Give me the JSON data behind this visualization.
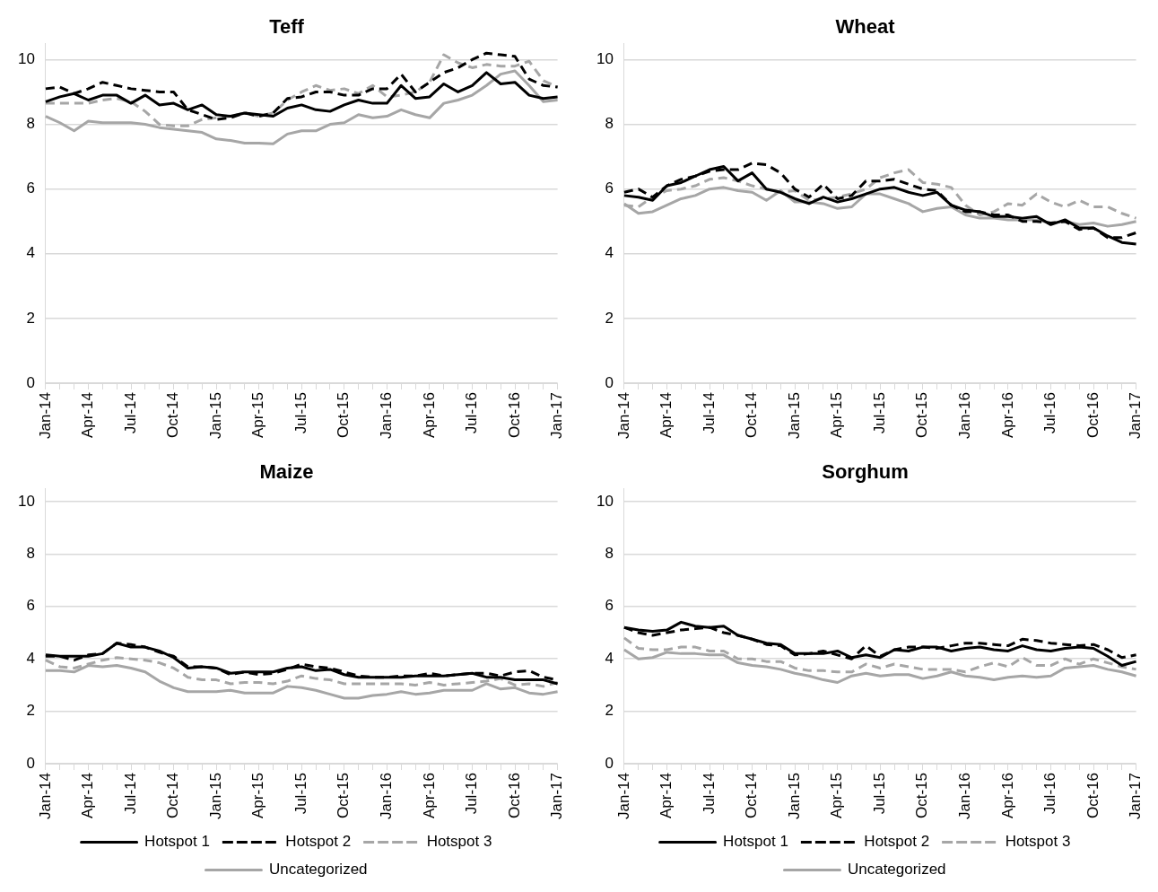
{
  "chart_data": [
    {
      "type": "line",
      "title": "Teff",
      "categories": [
        "Jan-14",
        null,
        null,
        "Apr-14",
        null,
        null,
        "Jul-14",
        null,
        null,
        "Oct-14",
        null,
        null,
        "Jan-15",
        null,
        null,
        "Apr-15",
        null,
        null,
        "Jul-15",
        null,
        null,
        "Oct-15",
        null,
        null,
        "Jan-16",
        null,
        null,
        "Apr-16",
        null,
        null,
        "Jul-16",
        null,
        null,
        "Oct-16",
        null,
        null,
        "Jan-17"
      ],
      "ylim": [
        0,
        10.5
      ],
      "yticks": [
        0,
        2,
        4,
        6,
        8,
        10
      ],
      "grid": "y",
      "legend": false,
      "marker": "none",
      "series": [
        {
          "color": "#000000",
          "line_style": "solid",
          "values": [
            8.7,
            8.85,
            8.95,
            8.75,
            8.9,
            8.9,
            8.65,
            8.9,
            8.6,
            8.65,
            8.45,
            8.6,
            8.3,
            8.25,
            8.35,
            8.3,
            8.25,
            8.5,
            8.6,
            8.45,
            8.4,
            8.6,
            8.75,
            8.65,
            8.65,
            9.2,
            8.8,
            8.85,
            9.25,
            9.0,
            9.2,
            9.6,
            9.25,
            9.3,
            8.9,
            8.8,
            8.85
          ]
        },
        {
          "color": "#000000",
          "line_style": "dashed",
          "values": [
            9.1,
            9.15,
            8.95,
            9.1,
            9.3,
            9.2,
            9.1,
            9.05,
            9.0,
            9.0,
            8.45,
            8.3,
            8.15,
            8.2,
            8.35,
            8.25,
            8.35,
            8.8,
            8.85,
            9.0,
            9.0,
            8.9,
            8.9,
            9.1,
            9.1,
            9.55,
            9.0,
            9.3,
            9.6,
            9.75,
            10.0,
            10.2,
            10.15,
            10.1,
            9.4,
            9.2,
            9.15
          ]
        },
        {
          "color": "#a6a6a6",
          "line_style": "dashed",
          "values": [
            8.65,
            8.65,
            8.65,
            8.65,
            8.75,
            8.8,
            8.7,
            8.4,
            8.0,
            7.95,
            7.95,
            8.15,
            8.2,
            8.25,
            8.35,
            8.25,
            8.35,
            8.75,
            9.0,
            9.2,
            9.05,
            9.1,
            8.95,
            9.2,
            8.85,
            8.9,
            9.0,
            9.3,
            10.15,
            9.9,
            9.75,
            9.85,
            9.8,
            9.8,
            9.95,
            9.35,
            9.15
          ]
        },
        {
          "color": "#a6a6a6",
          "line_style": "solid",
          "values": [
            8.25,
            8.05,
            7.8,
            8.1,
            8.05,
            8.05,
            8.05,
            8.0,
            7.9,
            7.85,
            7.8,
            7.75,
            7.55,
            7.5,
            7.42,
            7.42,
            7.4,
            7.7,
            7.8,
            7.8,
            8.0,
            8.05,
            8.3,
            8.2,
            8.25,
            8.45,
            8.3,
            8.2,
            8.65,
            8.75,
            8.9,
            9.2,
            9.55,
            9.65,
            9.2,
            8.7,
            8.75
          ]
        }
      ]
    },
    {
      "type": "line",
      "title": "Wheat",
      "categories": [
        "Jan-14",
        null,
        null,
        "Apr-14",
        null,
        null,
        "Jul-14",
        null,
        null,
        "Oct-14",
        null,
        null,
        "Jan-15",
        null,
        null,
        "Apr-15",
        null,
        null,
        "Jul-15",
        null,
        null,
        "Oct-15",
        null,
        null,
        "Jan-16",
        null,
        null,
        "Apr-16",
        null,
        null,
        "Jul-16",
        null,
        null,
        "Oct-16",
        null,
        null,
        "Jan-17"
      ],
      "ylim": [
        0,
        10.5
      ],
      "yticks": [
        0,
        2,
        4,
        6,
        8,
        10
      ],
      "grid": "y",
      "legend": false,
      "marker": "none",
      "series": [
        {
          "color": "#000000",
          "line_style": "solid",
          "values": [
            5.8,
            5.75,
            5.65,
            6.1,
            6.2,
            6.4,
            6.6,
            6.7,
            6.25,
            6.5,
            6.0,
            5.9,
            5.7,
            5.55,
            5.75,
            5.6,
            5.7,
            5.85,
            6.0,
            6.05,
            5.9,
            5.8,
            5.9,
            5.5,
            5.35,
            5.3,
            5.15,
            5.15,
            5.1,
            5.15,
            4.9,
            5.05,
            4.8,
            4.8,
            4.55,
            4.35,
            4.3
          ]
        },
        {
          "color": "#000000",
          "line_style": "dashed",
          "values": [
            5.9,
            6.0,
            5.75,
            6.1,
            6.3,
            6.4,
            6.55,
            6.6,
            6.6,
            6.8,
            6.75,
            6.5,
            6.0,
            5.75,
            6.15,
            5.7,
            5.8,
            6.25,
            6.25,
            6.3,
            6.15,
            6.0,
            5.95,
            5.5,
            5.3,
            5.3,
            5.2,
            5.2,
            5.0,
            5.0,
            4.95,
            5.0,
            4.75,
            4.8,
            4.5,
            4.5,
            4.65
          ]
        },
        {
          "color": "#a6a6a6",
          "line_style": "dashed",
          "values": [
            5.5,
            5.45,
            5.75,
            5.95,
            6.0,
            6.1,
            6.3,
            6.35,
            6.25,
            6.1,
            6.0,
            5.9,
            5.95,
            5.65,
            5.7,
            5.75,
            5.85,
            6.0,
            6.35,
            6.5,
            6.6,
            6.2,
            6.15,
            6.05,
            5.5,
            5.2,
            5.3,
            5.55,
            5.5,
            5.85,
            5.6,
            5.45,
            5.65,
            5.45,
            5.45,
            5.25,
            5.1
          ]
        },
        {
          "color": "#a6a6a6",
          "line_style": "solid",
          "values": [
            5.55,
            5.25,
            5.3,
            5.5,
            5.7,
            5.8,
            6.0,
            6.05,
            5.95,
            5.9,
            5.65,
            5.95,
            5.6,
            5.6,
            5.55,
            5.4,
            5.45,
            5.85,
            5.85,
            5.7,
            5.55,
            5.3,
            5.4,
            5.45,
            5.2,
            5.1,
            5.1,
            5.05,
            5.05,
            5.05,
            4.95,
            5.0,
            4.9,
            4.95,
            4.85,
            4.9,
            5.0
          ]
        }
      ]
    },
    {
      "type": "line",
      "title": "Maize",
      "categories": [
        "Jan-14",
        null,
        null,
        "Apr-14",
        null,
        null,
        "Jul-14",
        null,
        null,
        "Oct-14",
        null,
        null,
        "Jan-15",
        null,
        null,
        "Apr-15",
        null,
        null,
        "Jul-15",
        null,
        null,
        "Oct-15",
        null,
        null,
        "Jan-16",
        null,
        null,
        "Apr-16",
        null,
        null,
        "Jul-16",
        null,
        null,
        "Oct-16",
        null,
        null,
        "Jan-17"
      ],
      "ylim": [
        0,
        10.5
      ],
      "yticks": [
        0,
        2,
        4,
        6,
        8,
        10
      ],
      "grid": "y",
      "legend": "bottom",
      "marker": "none",
      "series": [
        {
          "name": "Hotspot 1",
          "color": "#000000",
          "line_style": "solid",
          "values": [
            4.15,
            4.1,
            4.1,
            4.1,
            4.2,
            4.6,
            4.45,
            4.45,
            4.3,
            4.05,
            3.65,
            3.7,
            3.65,
            3.45,
            3.5,
            3.5,
            3.5,
            3.65,
            3.7,
            3.55,
            3.6,
            3.4,
            3.3,
            3.3,
            3.3,
            3.3,
            3.35,
            3.35,
            3.35,
            3.4,
            3.45,
            3.3,
            3.3,
            3.2,
            3.2,
            3.2,
            3.05
          ]
        },
        {
          "name": "Hotspot 2",
          "color": "#000000",
          "line_style": "dashed",
          "values": [
            4.1,
            4.1,
            3.95,
            4.15,
            4.2,
            4.6,
            4.55,
            4.45,
            4.25,
            4.1,
            3.7,
            3.7,
            3.65,
            3.4,
            3.5,
            3.4,
            3.45,
            3.6,
            3.8,
            3.7,
            3.65,
            3.5,
            3.35,
            3.3,
            3.3,
            3.35,
            3.35,
            3.45,
            3.35,
            3.4,
            3.45,
            3.45,
            3.35,
            3.5,
            3.55,
            3.3,
            3.2
          ]
        },
        {
          "name": "Hotspot 3",
          "color": "#a6a6a6",
          "line_style": "dashed",
          "values": [
            3.95,
            3.7,
            3.65,
            3.8,
            3.95,
            4.05,
            4.0,
            3.95,
            3.85,
            3.65,
            3.3,
            3.2,
            3.2,
            3.05,
            3.1,
            3.1,
            3.05,
            3.15,
            3.35,
            3.25,
            3.2,
            3.05,
            3.05,
            3.05,
            3.05,
            3.05,
            3.0,
            3.1,
            3.0,
            3.05,
            3.1,
            3.15,
            3.25,
            3.0,
            3.05,
            2.95,
            3.1
          ]
        },
        {
          "name": "Uncategorized",
          "color": "#a6a6a6",
          "line_style": "solid",
          "values": [
            3.55,
            3.55,
            3.5,
            3.75,
            3.7,
            3.75,
            3.65,
            3.5,
            3.15,
            2.9,
            2.75,
            2.75,
            2.75,
            2.8,
            2.7,
            2.7,
            2.7,
            2.95,
            2.9,
            2.8,
            2.65,
            2.5,
            2.5,
            2.6,
            2.65,
            2.75,
            2.65,
            2.7,
            2.8,
            2.8,
            2.8,
            3.05,
            2.85,
            2.9,
            2.7,
            2.65,
            2.75
          ]
        }
      ]
    },
    {
      "type": "line",
      "title": "Sorghum",
      "categories": [
        "Jan-14",
        null,
        null,
        "Apr-14",
        null,
        null,
        "Jul-14",
        null,
        null,
        "Oct-14",
        null,
        null,
        "Jan-15",
        null,
        null,
        "Apr-15",
        null,
        null,
        "Jul-15",
        null,
        null,
        "Oct-15",
        null,
        null,
        "Jan-16",
        null,
        null,
        "Apr-16",
        null,
        null,
        "Jul-16",
        null,
        null,
        "Oct-16",
        null,
        null,
        "Jan-17"
      ],
      "ylim": [
        0,
        10.5
      ],
      "yticks": [
        0,
        2,
        4,
        6,
        8,
        10
      ],
      "grid": "y",
      "legend": "bottom",
      "marker": "none",
      "series": [
        {
          "name": "Hotspot 1",
          "color": "#000000",
          "line_style": "solid",
          "values": [
            5.2,
            5.1,
            5.05,
            5.1,
            5.4,
            5.25,
            5.2,
            5.25,
            4.9,
            4.75,
            4.6,
            4.55,
            4.2,
            4.2,
            4.2,
            4.3,
            4.05,
            4.15,
            4.05,
            4.35,
            4.3,
            4.45,
            4.45,
            4.3,
            4.4,
            4.45,
            4.35,
            4.3,
            4.5,
            4.35,
            4.3,
            4.4,
            4.45,
            4.4,
            4.1,
            3.75,
            3.9
          ]
        },
        {
          "name": "Hotspot 2",
          "color": "#000000",
          "line_style": "dashed",
          "values": [
            5.2,
            5.0,
            4.9,
            5.0,
            5.1,
            5.15,
            5.2,
            5.0,
            4.9,
            4.75,
            4.55,
            4.5,
            4.15,
            4.2,
            4.3,
            4.15,
            4.0,
            4.5,
            4.1,
            4.35,
            4.45,
            4.45,
            4.4,
            4.5,
            4.6,
            4.6,
            4.55,
            4.5,
            4.75,
            4.7,
            4.6,
            4.55,
            4.5,
            4.55,
            4.35,
            4.05,
            4.15
          ]
        },
        {
          "name": "Hotspot 3",
          "color": "#a6a6a6",
          "line_style": "dashed",
          "values": [
            4.8,
            4.4,
            4.35,
            4.35,
            4.45,
            4.45,
            4.3,
            4.3,
            4.0,
            4.0,
            3.9,
            3.9,
            3.65,
            3.55,
            3.55,
            3.5,
            3.5,
            3.8,
            3.65,
            3.8,
            3.7,
            3.6,
            3.6,
            3.6,
            3.5,
            3.7,
            3.85,
            3.7,
            4.05,
            3.75,
            3.75,
            4.0,
            3.8,
            4.0,
            3.85,
            3.7,
            3.6
          ]
        },
        {
          "name": "Uncategorized",
          "color": "#a6a6a6",
          "line_style": "solid",
          "values": [
            4.35,
            4.0,
            4.05,
            4.25,
            4.2,
            4.2,
            4.15,
            4.15,
            3.85,
            3.75,
            3.7,
            3.6,
            3.45,
            3.35,
            3.2,
            3.1,
            3.35,
            3.45,
            3.35,
            3.4,
            3.4,
            3.25,
            3.35,
            3.5,
            3.35,
            3.3,
            3.2,
            3.3,
            3.35,
            3.3,
            3.35,
            3.65,
            3.7,
            3.75,
            3.6,
            3.5,
            3.35
          ]
        }
      ]
    }
  ]
}
